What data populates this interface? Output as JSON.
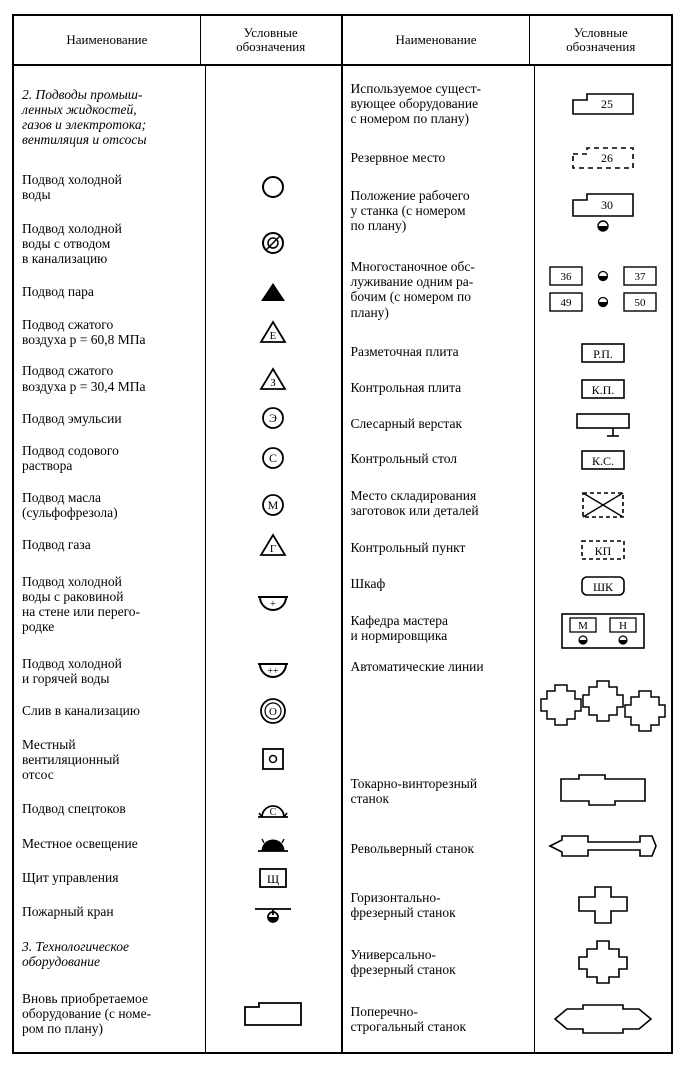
{
  "header": {
    "name_label": "Наименование",
    "sym_label": "Условные\nобозначения"
  },
  "colors": {
    "stroke": "#000000",
    "fill_white": "#ffffff",
    "fill_black": "#000000"
  },
  "left": {
    "section2_heading": "2. Подводы промыш-\nленных жидкостей,\nгазов и электротока;\nвентиляция и отсосы",
    "rows": [
      "Подвод холодной\nводы",
      "Подвод холодной\nводы с отводом\nв канализацию",
      "Подвод пара",
      "Подвод сжатого\nвоздуха p = 60,8 МПа",
      "Подвод сжатого\nвоздуха p = 30,4 МПа",
      "Подвод эмульсии",
      "Подвод содового\nраствора",
      "Подвод масла\n(сульфофрезола)",
      "Подвод газа",
      "Подвод холодной\nводы с раковиной\nна стене или перего-\nродке",
      "Подвод холодной\nи горячей воды",
      "Слив в канализацию",
      "Местный\nвентиляционный\nотсос",
      "Подвод спецтоков",
      "Местное освещение",
      "Щит управления",
      "Пожарный кран"
    ],
    "section3_heading": "3. Технологическое\nоборудование",
    "section3_row": "Вновь приобретаемое\nоборудование (с номе-\nром по плану)",
    "symbol_letters": {
      "E": "Е",
      "Z": "З",
      "Eh": "Э",
      "S": "С",
      "M": "М",
      "G": "Г",
      "plus": "+",
      "plusplus": "++",
      "O": "О",
      "o_small": "о",
      "Shch": "Щ",
      "Cspec": "С"
    }
  },
  "right": {
    "rows": [
      "Используемое сущест-\nвующее оборудование\nс номером по плану)",
      "Резервное место",
      "Положение рабочего\nу станка (с номером\nпо плану)",
      "Многостаночное обс-\nлуживание одним ра-\nбочим (с номером по\nплану)",
      "Разметочная плита",
      "Контрольная плита",
      "Слесарный верстак",
      "Контрольный стол",
      "Место складирования\nзаготовок или деталей",
      "Контрольный пункт",
      "Шкаф",
      "Кафедра мастера\nи нормировщика",
      "Автоматические линии",
      "Токарно-винторезный\nстанок",
      "Револьверный станок",
      "Горизонтально-\nфрезерный станок",
      "Универсально-\nфрезерный станок",
      "Поперечно-\nстрогальный станок"
    ],
    "symbol_labels": {
      "n25": "25",
      "n26": "26",
      "n30": "30",
      "n36": "36",
      "n37": "37",
      "n49": "49",
      "n50": "50",
      "RP": "Р.П.",
      "KP": "К.П.",
      "KS": "К.С.",
      "KPunkt": "КП",
      "ShK": "ШК",
      "M": "М",
      "N": "Н"
    }
  },
  "row_flex": {
    "left_name": [
      2.6,
      1.3,
      1.8,
      0.9,
      1.3,
      1.3,
      0.9,
      1.3,
      1.3,
      0.9,
      2.4,
      1.3,
      0.9,
      1.8,
      0.95,
      0.95,
      0.95,
      0.95,
      1.4,
      1.9
    ],
    "left_sym": [
      2.6,
      1.3,
      1.8,
      0.9,
      1.3,
      1.3,
      0.9,
      1.3,
      1.3,
      0.9,
      2.4,
      1.3,
      0.9,
      1.8,
      0.95,
      0.95,
      0.95,
      0.95,
      1.4,
      1.9
    ],
    "right_name": [
      1.9,
      1.1,
      1.9,
      2.5,
      1.0,
      1.0,
      1.0,
      1.0,
      1.5,
      1.0,
      1.0,
      1.5,
      2.9,
      1.6,
      1.6,
      1.6,
      1.6,
      1.6
    ],
    "right_sym": [
      1.9,
      1.1,
      1.9,
      2.5,
      1.0,
      1.0,
      1.0,
      1.0,
      1.5,
      1.0,
      1.0,
      1.5,
      2.9,
      1.6,
      1.6,
      1.6,
      1.6,
      1.6
    ]
  }
}
